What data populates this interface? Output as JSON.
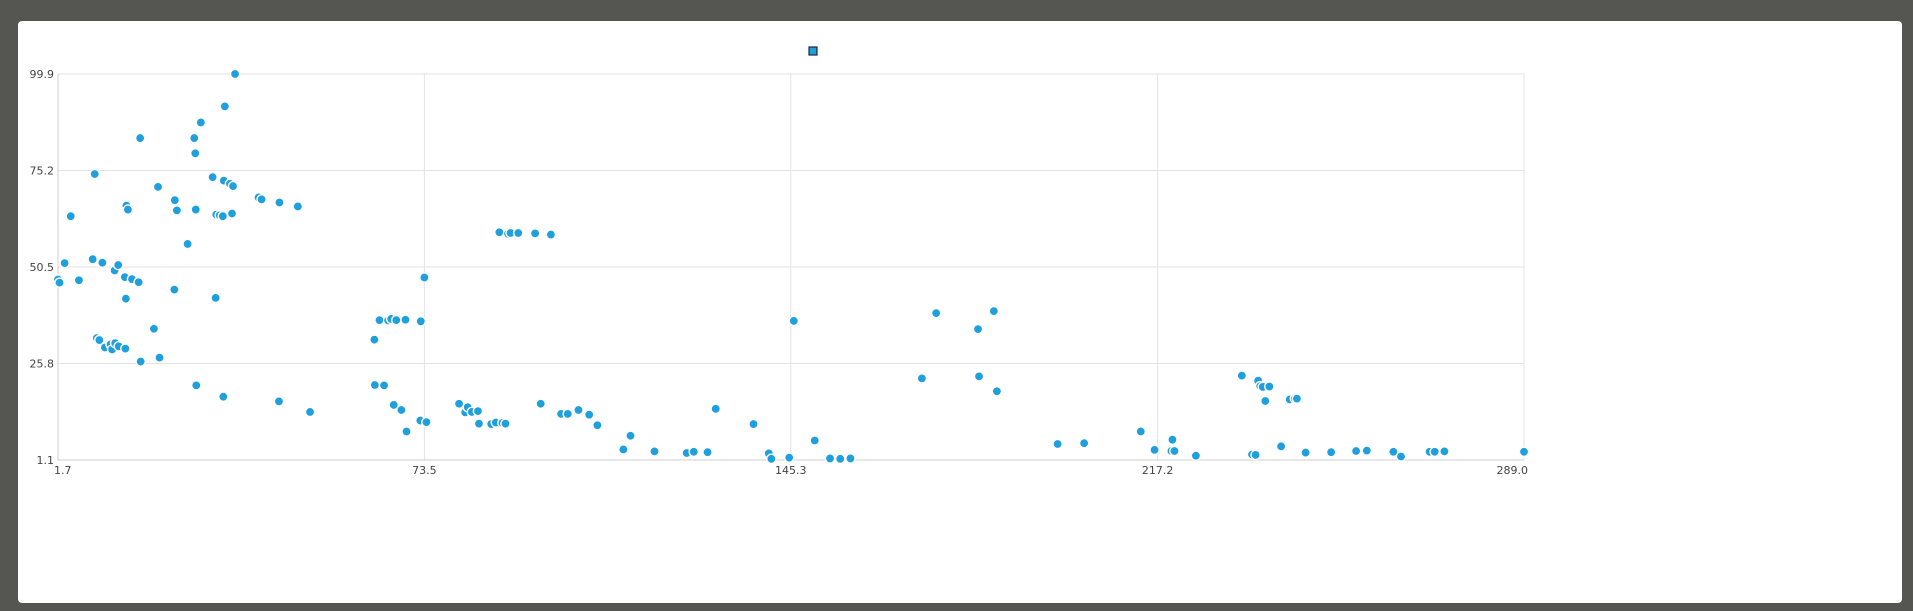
{
  "chart_data": {
    "type": "scatter",
    "xlabel": "",
    "ylabel": "",
    "xlim": [
      1.7,
      289.0
    ],
    "ylim": [
      1.1,
      99.9
    ],
    "x_ticks": [
      "1.7",
      "73.5",
      "145.3",
      "217.2",
      "289.0"
    ],
    "y_ticks": [
      "99.9",
      "75.2",
      "50.5",
      "25.8",
      "1.1"
    ],
    "grid": true,
    "legend": {
      "position": "top-center",
      "marker_color": "#1fa0dc"
    },
    "series": [
      {
        "color": "#1fa0dc",
        "points": [
          [
            1.7,
            47.3
          ],
          [
            2.0,
            46.5
          ],
          [
            3.0,
            51.5
          ],
          [
            4.2,
            63.5
          ],
          [
            5.8,
            47.1
          ],
          [
            8.5,
            52.5
          ],
          [
            8.9,
            74.3
          ],
          [
            9.3,
            32.3
          ],
          [
            9.8,
            31.8
          ],
          [
            10.4,
            51.6
          ],
          [
            10.9,
            29.9
          ],
          [
            12.0,
            30.7
          ],
          [
            12.3,
            29.4
          ],
          [
            12.8,
            49.6
          ],
          [
            12.9,
            31.0
          ],
          [
            13.5,
            51.0
          ],
          [
            13.6,
            30.2
          ],
          [
            14.8,
            47.9
          ],
          [
            14.9,
            29.6
          ],
          [
            15.0,
            42.4
          ],
          [
            15.1,
            66.2
          ],
          [
            15.4,
            65.2
          ],
          [
            16.2,
            47.4
          ],
          [
            17.5,
            46.6
          ],
          [
            17.8,
            83.5
          ],
          [
            17.9,
            26.3
          ],
          [
            20.5,
            34.7
          ],
          [
            21.3,
            71.0
          ],
          [
            21.6,
            27.3
          ],
          [
            24.5,
            44.7
          ],
          [
            24.6,
            67.6
          ],
          [
            25.0,
            65.0
          ],
          [
            27.1,
            56.4
          ],
          [
            28.4,
            83.5
          ],
          [
            28.6,
            79.6
          ],
          [
            28.7,
            65.2
          ],
          [
            28.8,
            20.2
          ],
          [
            29.7,
            87.5
          ],
          [
            32.0,
            73.5
          ],
          [
            32.6,
            42.6
          ],
          [
            32.7,
            63.9
          ],
          [
            33.4,
            63.7
          ],
          [
            34.0,
            63.5
          ],
          [
            34.1,
            17.3
          ],
          [
            34.2,
            72.6
          ],
          [
            34.4,
            91.6
          ],
          [
            35.4,
            71.8
          ],
          [
            35.8,
            64.2
          ],
          [
            36.0,
            71.2
          ],
          [
            36.4,
            99.9
          ],
          [
            41.0,
            68.3
          ],
          [
            41.6,
            67.8
          ],
          [
            45.0,
            16.1
          ],
          [
            45.1,
            67.0
          ],
          [
            48.7,
            66.0
          ],
          [
            51.1,
            13.4
          ],
          [
            63.7,
            31.9
          ],
          [
            63.8,
            20.3
          ],
          [
            64.7,
            36.9
          ],
          [
            65.6,
            20.2
          ],
          [
            66.4,
            36.8
          ],
          [
            67.0,
            37.2
          ],
          [
            67.5,
            15.2
          ],
          [
            68.0,
            36.9
          ],
          [
            69.0,
            13.9
          ],
          [
            69.8,
            37.0
          ],
          [
            70.0,
            8.4
          ],
          [
            72.7,
            11.2
          ],
          [
            72.8,
            36.6
          ],
          [
            73.9,
            10.8
          ],
          [
            73.5,
            47.8
          ],
          [
            80.3,
            15.5
          ],
          [
            81.5,
            13.3
          ],
          [
            82.0,
            14.6
          ],
          [
            82.8,
            13.4
          ],
          [
            84.0,
            13.6
          ],
          [
            84.2,
            10.4
          ],
          [
            86.6,
            10.3
          ],
          [
            87.5,
            10.7
          ],
          [
            88.2,
            59.4
          ],
          [
            88.8,
            10.6
          ],
          [
            89.4,
            10.4
          ],
          [
            89.9,
            59.0
          ],
          [
            90.4,
            59.2
          ],
          [
            91.9,
            59.2
          ],
          [
            95.2,
            59.1
          ],
          [
            96.3,
            15.5
          ],
          [
            98.3,
            58.8
          ],
          [
            100.3,
            12.9
          ],
          [
            101.6,
            12.9
          ],
          [
            103.7,
            13.9
          ],
          [
            105.8,
            12.7
          ],
          [
            107.4,
            10.0
          ],
          [
            112.5,
            3.8
          ],
          [
            113.9,
            7.3
          ],
          [
            118.6,
            3.3
          ],
          [
            124.9,
            2.9
          ],
          [
            126.3,
            3.2
          ],
          [
            129.0,
            3.1
          ],
          [
            130.6,
            14.2
          ],
          [
            138.0,
            10.3
          ],
          [
            141.0,
            2.8
          ],
          [
            141.5,
            1.4
          ],
          [
            145.0,
            1.7
          ],
          [
            145.9,
            36.7
          ],
          [
            150.0,
            6.1
          ],
          [
            153.0,
            1.5
          ],
          [
            155.0,
            1.4
          ],
          [
            157.0,
            1.5
          ],
          [
            171.0,
            22.0
          ],
          [
            173.8,
            38.7
          ],
          [
            182.0,
            34.6
          ],
          [
            182.2,
            22.5
          ],
          [
            185.1,
            39.2
          ],
          [
            185.7,
            18.7
          ],
          [
            197.6,
            5.2
          ],
          [
            202.8,
            5.4
          ],
          [
            213.9,
            8.4
          ],
          [
            216.6,
            3.7
          ],
          [
            219.9,
            3.4
          ],
          [
            220.1,
            6.3
          ],
          [
            220.5,
            3.4
          ],
          [
            224.7,
            2.2
          ],
          [
            233.7,
            22.7
          ],
          [
            235.7,
            2.5
          ],
          [
            236.4,
            2.4
          ],
          [
            236.9,
            21.4
          ],
          [
            237.3,
            20.0
          ],
          [
            237.8,
            19.8
          ],
          [
            238.3,
            16.2
          ],
          [
            239.1,
            19.9
          ],
          [
            241.4,
            4.6
          ],
          [
            243.1,
            16.6
          ],
          [
            244.1,
            16.8
          ],
          [
            244.5,
            16.8
          ],
          [
            246.2,
            3.0
          ],
          [
            251.2,
            3.1
          ],
          [
            256.1,
            3.4
          ],
          [
            258.0,
            3.4
          ],
          [
            258.2,
            3.5
          ],
          [
            263.4,
            3.2
          ],
          [
            264.9,
            2.0
          ],
          [
            270.5,
            3.2
          ],
          [
            271.5,
            3.2
          ],
          [
            273.4,
            3.3
          ],
          [
            289.0,
            3.2
          ]
        ]
      }
    ]
  }
}
